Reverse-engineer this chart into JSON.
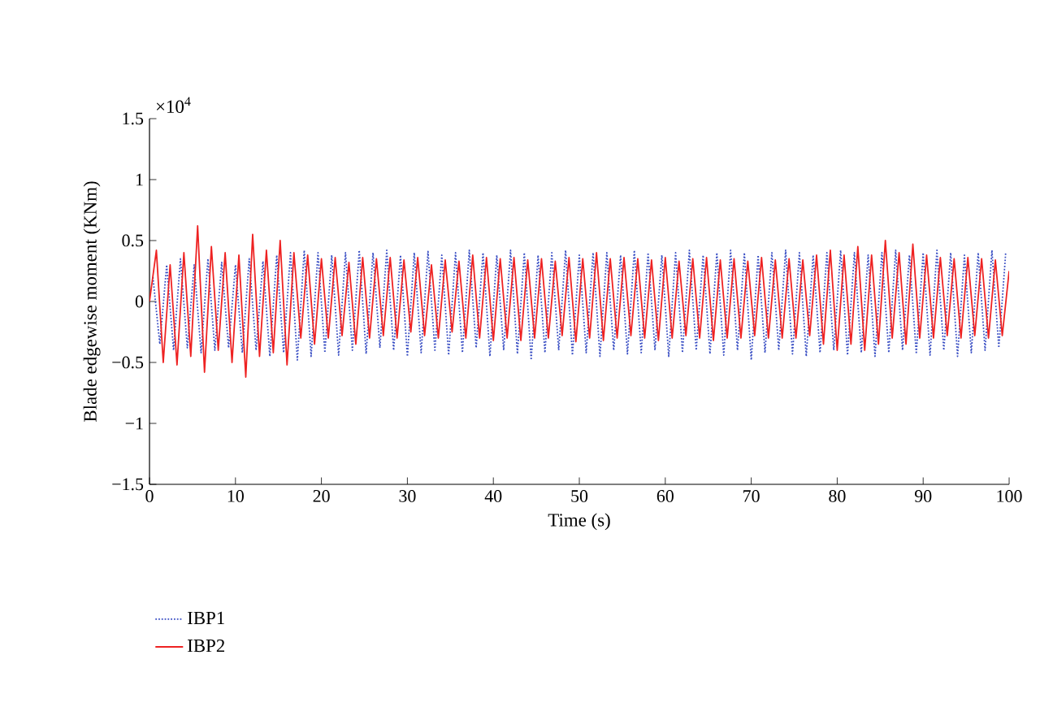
{
  "chart_data": {
    "type": "line",
    "xlabel": "Time (s)",
    "ylabel": "Blade edgewise moment (KNm)",
    "annotations": [
      "×10$^{4}$"
    ],
    "xlim": [
      0,
      100
    ],
    "xticks": [
      0,
      10,
      20,
      30,
      40,
      50,
      60,
      70,
      80,
      90,
      100
    ],
    "ylim": [
      -1.5,
      1.5
    ],
    "yticks": [
      {
        "value": -1.5,
        "label": "−1.5"
      },
      {
        "value": -1,
        "label": "−1"
      },
      {
        "value": -0.5,
        "label": "−0.5"
      },
      0,
      0.5,
      1,
      1.5
    ],
    "grid": false,
    "legend": "bottom left",
    "marker": "none",
    "series": [
      {
        "name": "IBP1",
        "color": "#3a4fc4",
        "line_style": "dotted",
        "x": [
          0.4,
          1.2,
          2,
          2.8,
          3.6,
          4.4,
          5.2,
          6,
          6.8,
          7.6,
          8.4,
          9.2,
          10,
          10.8,
          11.6,
          12.4,
          13.2,
          14,
          14.8,
          15.6,
          16.4,
          17.2,
          18,
          18.8,
          19.6,
          20.4,
          21.2,
          22,
          22.8,
          23.6,
          24.4,
          25.2,
          26,
          26.8,
          27.6,
          28.4,
          29.2,
          30,
          30.8,
          31.6,
          32.4,
          33.2,
          34,
          34.8,
          35.6,
          36.4,
          37.2,
          38,
          38.8,
          39.6,
          40.4,
          41.2,
          42,
          42.8,
          43.6,
          44.4,
          45.2,
          46,
          46.8,
          47.6,
          48.4,
          49.2,
          50,
          50.8,
          51.6,
          52.4,
          53.2,
          54,
          54.8,
          55.6,
          56.4,
          57.2,
          58,
          58.8,
          59.6,
          60.4,
          61.2,
          62,
          62.8,
          63.6,
          64.4,
          65.2,
          66,
          66.8,
          67.6,
          68.4,
          69.2,
          70,
          70.8,
          71.6,
          72.4,
          73.2,
          74,
          74.8,
          75.6,
          76.4,
          77.2,
          78,
          78.8,
          79.6,
          80.4,
          81.2,
          82,
          82.8,
          83.6,
          84.4,
          85.2,
          86,
          86.8,
          87.6,
          88.4,
          89.2,
          90,
          90.8,
          91.6,
          92.4,
          93.2,
          94,
          94.8,
          95.6,
          96.4,
          97.2,
          98,
          98.8,
          99.6
        ],
        "values": [
          0.2,
          -0.35,
          0.3,
          -0.4,
          0.35,
          -0.38,
          0.3,
          -0.42,
          0.35,
          -0.4,
          0.32,
          -0.38,
          0.3,
          -0.42,
          0.35,
          -0.4,
          0.33,
          -0.45,
          0.38,
          -0.42,
          0.4,
          -0.48,
          0.42,
          -0.45,
          0.4,
          -0.42,
          0.38,
          -0.44,
          0.4,
          -0.4,
          0.42,
          -0.43,
          0.4,
          -0.38,
          0.42,
          -0.4,
          0.38,
          -0.45,
          0.4,
          -0.42,
          0.41,
          -0.4,
          0.38,
          -0.44,
          0.4,
          -0.42,
          0.42,
          -0.38,
          0.4,
          -0.45,
          0.38,
          -0.4,
          0.42,
          -0.43,
          0.4,
          -0.48,
          0.38,
          -0.42,
          0.4,
          -0.4,
          0.42,
          -0.44,
          0.38,
          -0.42,
          0.4,
          -0.45,
          0.4,
          -0.4,
          0.38,
          -0.43,
          0.42,
          -0.42,
          0.4,
          -0.4,
          0.38,
          -0.45,
          0.4,
          -0.42,
          0.42,
          -0.4,
          0.38,
          -0.43,
          0.4,
          -0.44,
          0.42,
          -0.4,
          0.4,
          -0.48,
          0.38,
          -0.42,
          0.4,
          -0.4,
          0.42,
          -0.43,
          0.4,
          -0.45,
          0.38,
          -0.42,
          0.4,
          -0.4,
          0.42,
          -0.44,
          0.4,
          -0.42,
          0.38,
          -0.45,
          0.4,
          -0.42,
          0.42,
          -0.4,
          0.38,
          -0.43,
          0.4,
          -0.44,
          0.42,
          -0.4,
          0.4,
          -0.45,
          0.38,
          -0.42,
          0.4,
          -0.4,
          0.42,
          -0.38,
          0.4
        ]
      },
      {
        "name": "IBP2",
        "color": "#ee2222",
        "line_style": "solid",
        "x": [
          0,
          0.8,
          1.6,
          2.4,
          3.2,
          4,
          4.8,
          5.6,
          6.4,
          7.2,
          8,
          8.8,
          9.6,
          10.4,
          11.2,
          12,
          12.8,
          13.6,
          14.4,
          15.2,
          16,
          16.8,
          17.6,
          18.4,
          19.2,
          20,
          20.8,
          21.6,
          22.4,
          23.2,
          24,
          24.8,
          25.6,
          26.4,
          27.2,
          28,
          28.8,
          29.6,
          30.4,
          31.2,
          32,
          32.8,
          33.6,
          34.4,
          35.2,
          36,
          36.8,
          37.6,
          38.4,
          39.2,
          40,
          40.8,
          41.6,
          42.4,
          43.2,
          44,
          44.8,
          45.6,
          46.4,
          47.2,
          48,
          48.8,
          49.6,
          50.4,
          51.2,
          52,
          52.8,
          53.6,
          54.4,
          55.2,
          56,
          56.8,
          57.6,
          58.4,
          59.2,
          60,
          60.8,
          61.6,
          62.4,
          63.2,
          64,
          64.8,
          65.6,
          66.4,
          67.2,
          68,
          68.8,
          69.6,
          70.4,
          71.2,
          72,
          72.8,
          73.6,
          74.4,
          75.2,
          76,
          76.8,
          77.6,
          78.4,
          79.2,
          80,
          80.8,
          81.6,
          82.4,
          83.2,
          84,
          84.8,
          85.6,
          86.4,
          87.2,
          88,
          88.8,
          89.6,
          90.4,
          91.2,
          92,
          92.8,
          93.6,
          94.4,
          95.2,
          96,
          96.8,
          97.6,
          98.4,
          99.2,
          100
        ],
        "values": [
          0,
          0.42,
          -0.5,
          0.3,
          -0.52,
          0.4,
          -0.45,
          0.62,
          -0.58,
          0.45,
          -0.4,
          0.4,
          -0.5,
          0.38,
          -0.62,
          0.55,
          -0.45,
          0.42,
          -0.42,
          0.5,
          -0.52,
          0.4,
          -0.3,
          0.38,
          -0.35,
          0.35,
          -0.3,
          0.36,
          -0.28,
          0.32,
          -0.35,
          0.36,
          -0.3,
          0.35,
          -0.28,
          0.36,
          -0.3,
          0.34,
          -0.25,
          0.36,
          -0.28,
          0.3,
          -0.3,
          0.34,
          -0.25,
          0.33,
          -0.3,
          0.38,
          -0.3,
          0.36,
          -0.32,
          0.35,
          -0.3,
          0.36,
          -0.32,
          0.34,
          -0.3,
          0.35,
          -0.3,
          0.33,
          -0.28,
          0.36,
          -0.33,
          0.35,
          -0.3,
          0.4,
          -0.32,
          0.35,
          -0.3,
          0.36,
          -0.28,
          0.35,
          -0.3,
          0.34,
          -0.32,
          0.36,
          -0.3,
          0.33,
          -0.28,
          0.35,
          -0.3,
          0.36,
          -0.32,
          0.34,
          -0.3,
          0.35,
          -0.3,
          0.33,
          -0.28,
          0.36,
          -0.3,
          0.34,
          -0.3,
          0.35,
          -0.3,
          0.34,
          -0.28,
          0.38,
          -0.35,
          0.42,
          -0.4,
          0.38,
          -0.35,
          0.45,
          -0.4,
          0.38,
          -0.35,
          0.5,
          -0.3,
          0.4,
          -0.35,
          0.47,
          -0.3,
          0.38,
          -0.3,
          0.36,
          -0.28,
          0.35,
          -0.3,
          0.36,
          -0.28,
          0.35,
          -0.3,
          0.34,
          -0.28,
          0.25
        ]
      }
    ]
  }
}
